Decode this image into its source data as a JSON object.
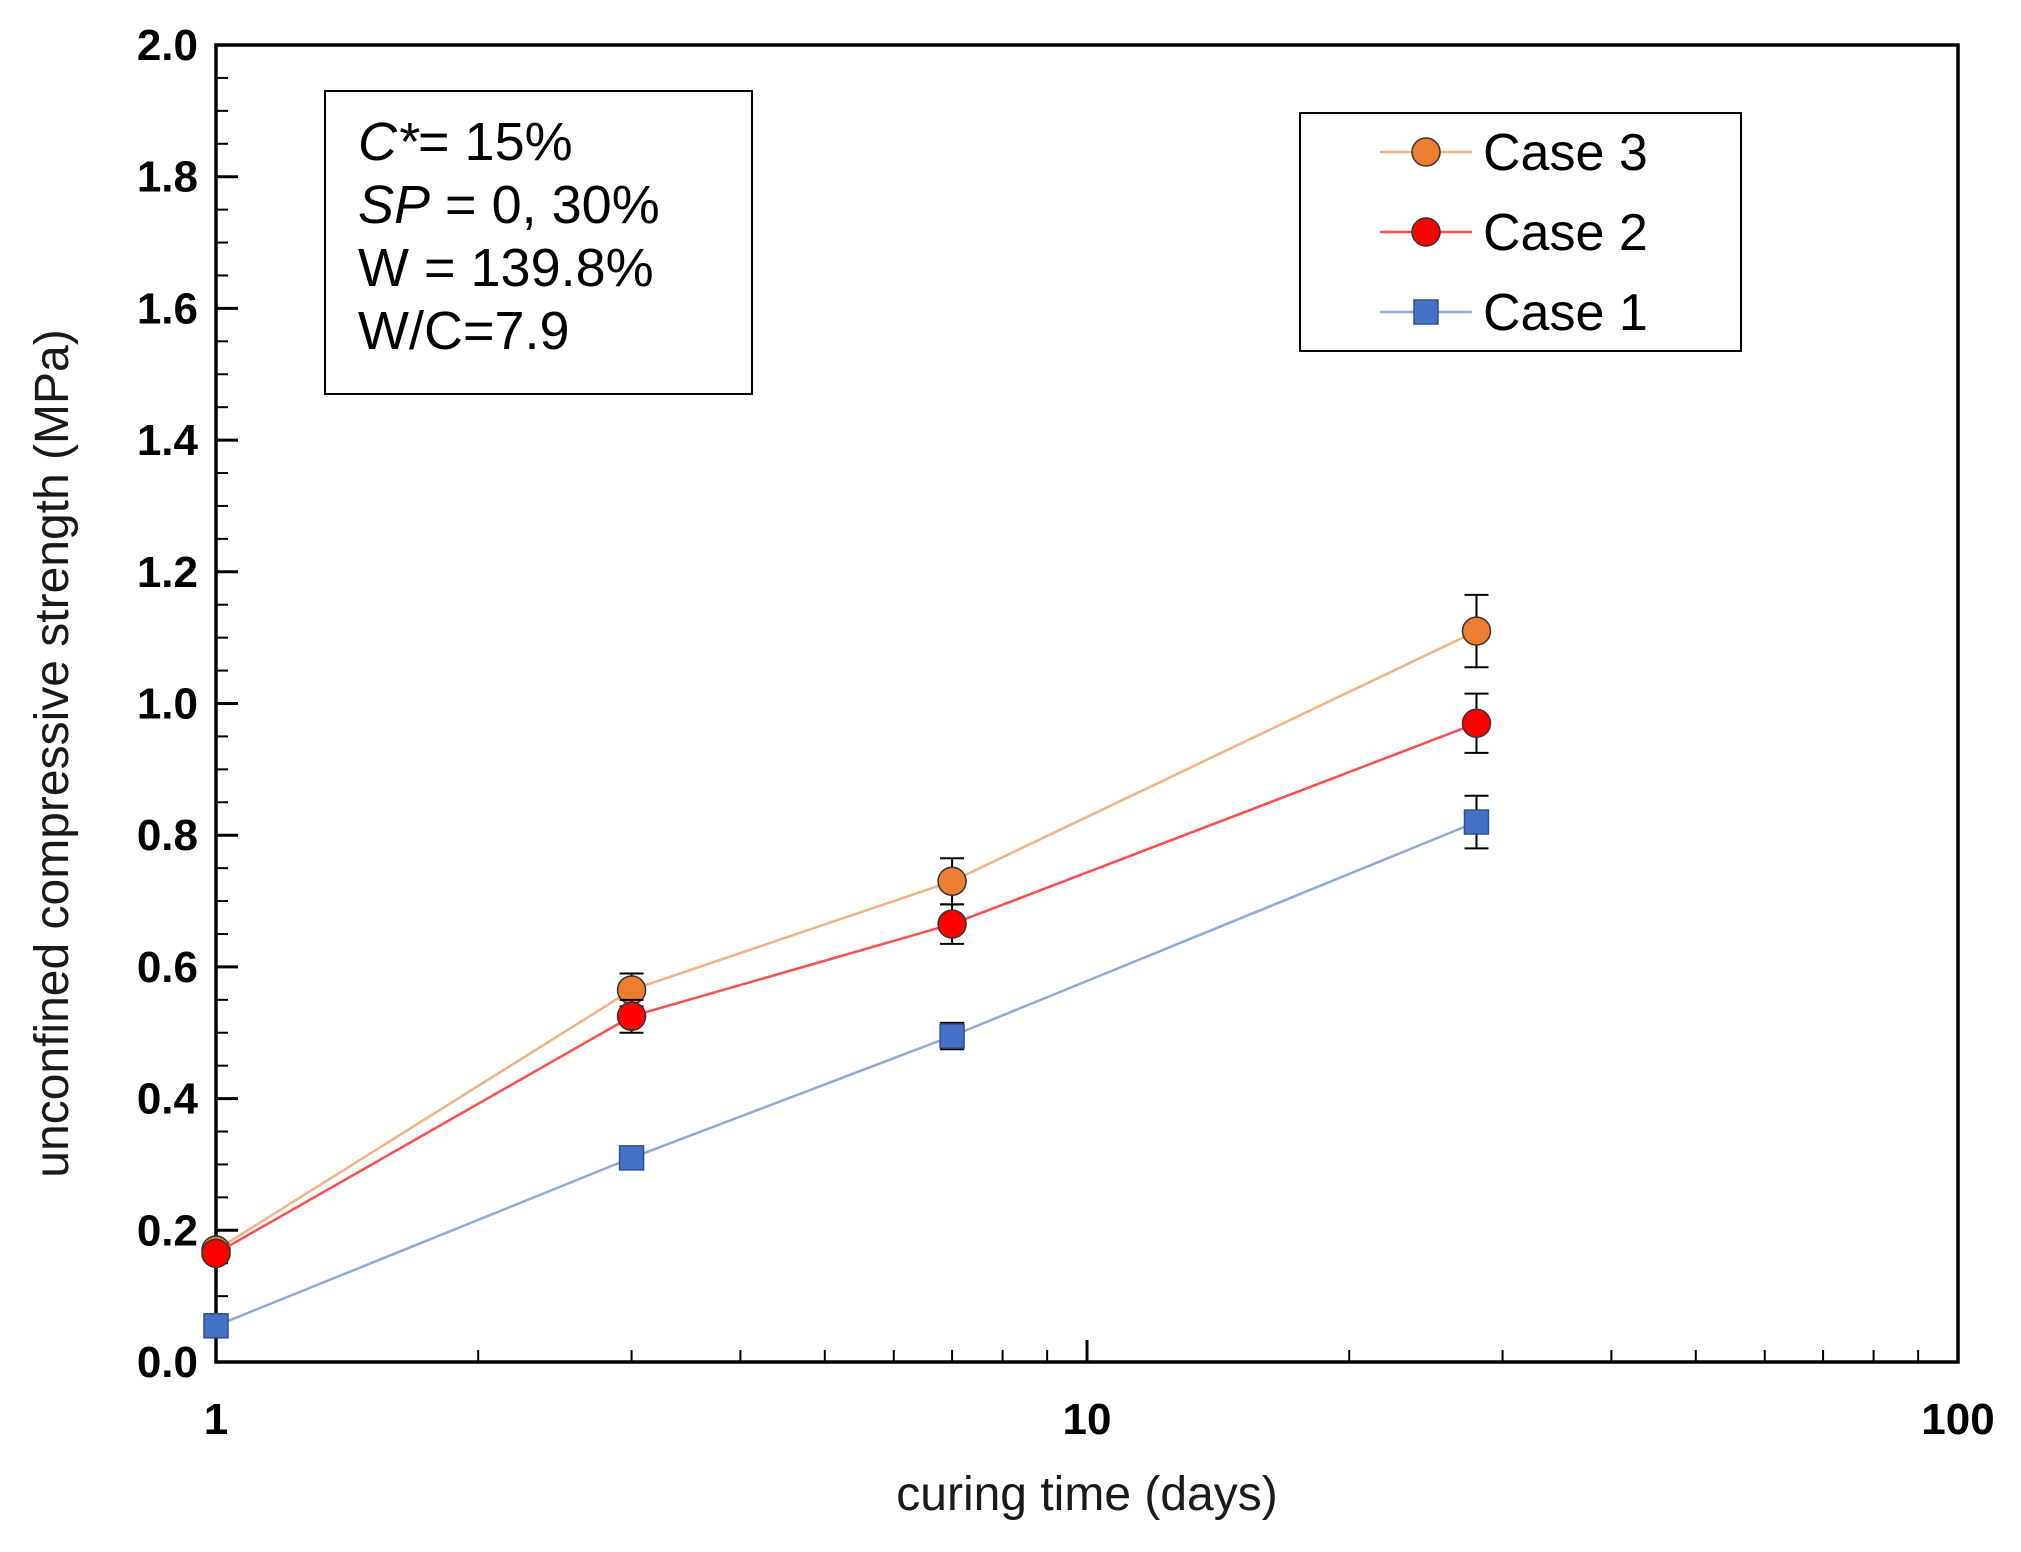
{
  "chart_data": {
    "type": "line",
    "title": "",
    "xlabel": "curing time (days)",
    "ylabel": "unconfined compressive strength (MPa)",
    "x_scale": "log",
    "xlim": [
      1,
      100
    ],
    "ylim": [
      0.0,
      2.0
    ],
    "x_ticks": [
      "1",
      "10",
      "100"
    ],
    "y_ticks": [
      "0.0",
      "0.2",
      "0.4",
      "0.6",
      "0.8",
      "1.0",
      "1.2",
      "1.4",
      "1.6",
      "1.8",
      "2.0"
    ],
    "grid": false,
    "legend_position": "top-right",
    "x": [
      1,
      3,
      7,
      28
    ],
    "series": [
      {
        "name": "Case 3",
        "marker": "circle",
        "line_color": "#f4b183",
        "marker_color": "#ed7d31",
        "values": [
          0.17,
          0.565,
          0.73,
          1.11
        ],
        "error": [
          0.0,
          0.025,
          0.035,
          0.055
        ]
      },
      {
        "name": "Case 2",
        "marker": "circle",
        "line_color": "#ff4d4d",
        "marker_color": "#ff0000",
        "values": [
          0.165,
          0.525,
          0.665,
          0.97
        ],
        "error": [
          0.0,
          0.025,
          0.03,
          0.045
        ]
      },
      {
        "name": "Case 1",
        "marker": "square",
        "line_color": "#8faadc",
        "marker_color": "#4472c4",
        "values": [
          0.055,
          0.31,
          0.495,
          0.82
        ],
        "error": [
          0.0,
          0.0,
          0.02,
          0.04
        ]
      }
    ]
  },
  "note": {
    "lines": [
      {
        "italic": "C*",
        "rest": "= 15%"
      },
      {
        "italic": "SP",
        "rest": " = 0, 30%"
      },
      {
        "italic": "",
        "rest": "W = 139.8%"
      },
      {
        "italic": "",
        "rest": "W/C=7.9"
      }
    ]
  }
}
